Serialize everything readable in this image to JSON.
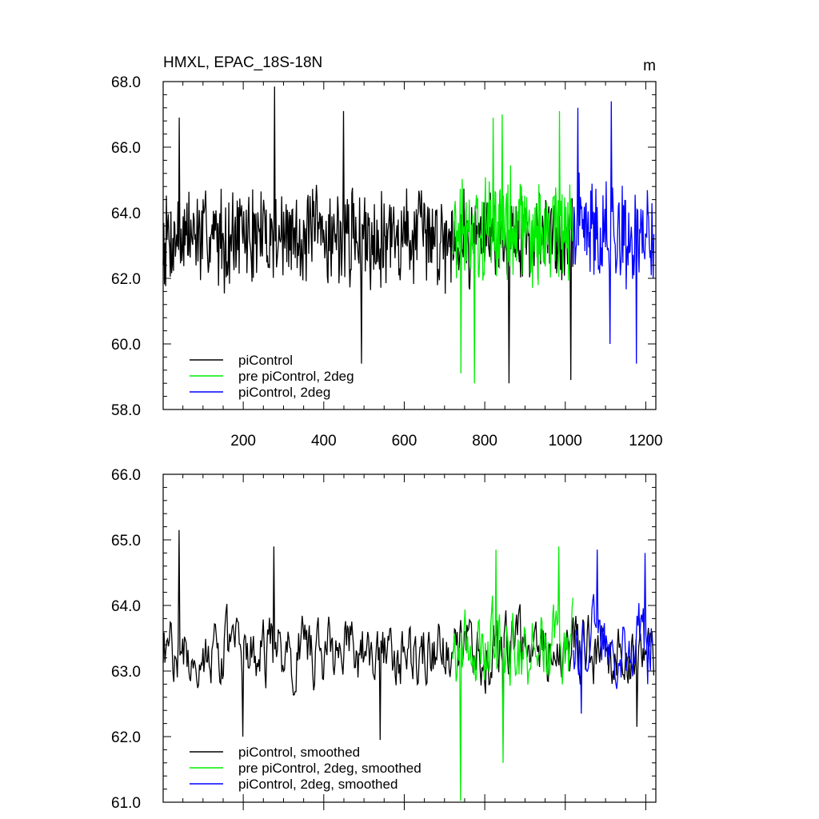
{
  "chart_data": [
    {
      "type": "line",
      "title": "HMXL, EPAC_18S-18N",
      "units": "m",
      "xlim": [
        1,
        1225
      ],
      "ylim": [
        58.0,
        68.0
      ],
      "x_ticks": [
        200,
        400,
        600,
        800,
        1000,
        1200
      ],
      "y_ticks": [
        "58.0",
        "60.0",
        "62.0",
        "64.0",
        "66.0",
        "68.0"
      ],
      "y_tick_values": [
        58,
        60,
        62,
        64,
        66,
        68
      ],
      "x_tick_labels_shown": true,
      "legend_position": "bottom-left",
      "series": [
        {
          "name": "piControl",
          "color": "#000000",
          "x_start": 1,
          "x_end": 1020,
          "mean": 63.3,
          "amplitude": 1.2,
          "spikes": [
            [
              278,
              67.85
            ],
            [
              450,
              67.1
            ],
            [
              42,
              66.9
            ],
            [
              495,
              59.4
            ],
            [
              860,
              58.8
            ],
            [
              1015,
              58.9
            ]
          ]
        },
        {
          "name": "pre piControl, 2deg",
          "color": "#00ee00",
          "x_start": 720,
          "x_end": 1020,
          "mean": 63.5,
          "amplitude": 1.35,
          "spikes": [
            [
              775,
              58.8
            ],
            [
              740,
              59.1
            ],
            [
              820,
              66.9
            ],
            [
              985,
              67.1
            ],
            [
              843,
              67.0
            ]
          ]
        },
        {
          "name": "piControl, 2deg",
          "color": "#0000ff",
          "x_start": 1020,
          "x_end": 1220,
          "mean": 63.4,
          "amplitude": 1.3,
          "spikes": [
            [
              1113,
              67.4
            ],
            [
              1030,
              67.2
            ],
            [
              1176,
              59.4
            ],
            [
              1110,
              60.0
            ]
          ]
        }
      ]
    },
    {
      "type": "line",
      "title": "",
      "xlim": [
        1,
        1225
      ],
      "ylim": [
        61.0,
        66.0
      ],
      "x_ticks": [
        200,
        400,
        600,
        800,
        1000,
        1200
      ],
      "y_ticks": [
        "61.0",
        "62.0",
        "63.0",
        "64.0",
        "65.0",
        "66.0"
      ],
      "y_tick_values": [
        61,
        62,
        63,
        64,
        65,
        66
      ],
      "x_tick_labels_shown": false,
      "legend_position": "bottom-left",
      "series": [
        {
          "name": "piControl, smoothed",
          "color": "#000000",
          "x_start": 1,
          "x_end": 1220,
          "mean": 63.3,
          "amplitude": 0.55,
          "spikes": [
            [
              40,
              65.15
            ],
            [
              275,
              64.9
            ],
            [
              197,
              62.0
            ],
            [
              540,
              61.95
            ],
            [
              845,
              62.2
            ],
            [
              1178,
              62.15
            ]
          ]
        },
        {
          "name": "pre piControl, 2deg, smoothed",
          "color": "#00ee00",
          "x_start": 720,
          "x_end": 1020,
          "mean": 63.4,
          "amplitude": 0.7,
          "spikes": [
            [
              740,
              61.0
            ],
            [
              828,
              64.85
            ],
            [
              983,
              64.9
            ],
            [
              845,
              61.6
            ]
          ]
        },
        {
          "name": "piControl, 2deg, smoothed",
          "color": "#0000ff",
          "x_start": 1020,
          "x_end": 1220,
          "mean": 63.5,
          "amplitude": 0.6,
          "spikes": [
            [
              1080,
              64.85
            ],
            [
              1198,
              64.8
            ],
            [
              1040,
              62.35
            ],
            [
              1205,
              62.8
            ]
          ]
        }
      ]
    }
  ]
}
